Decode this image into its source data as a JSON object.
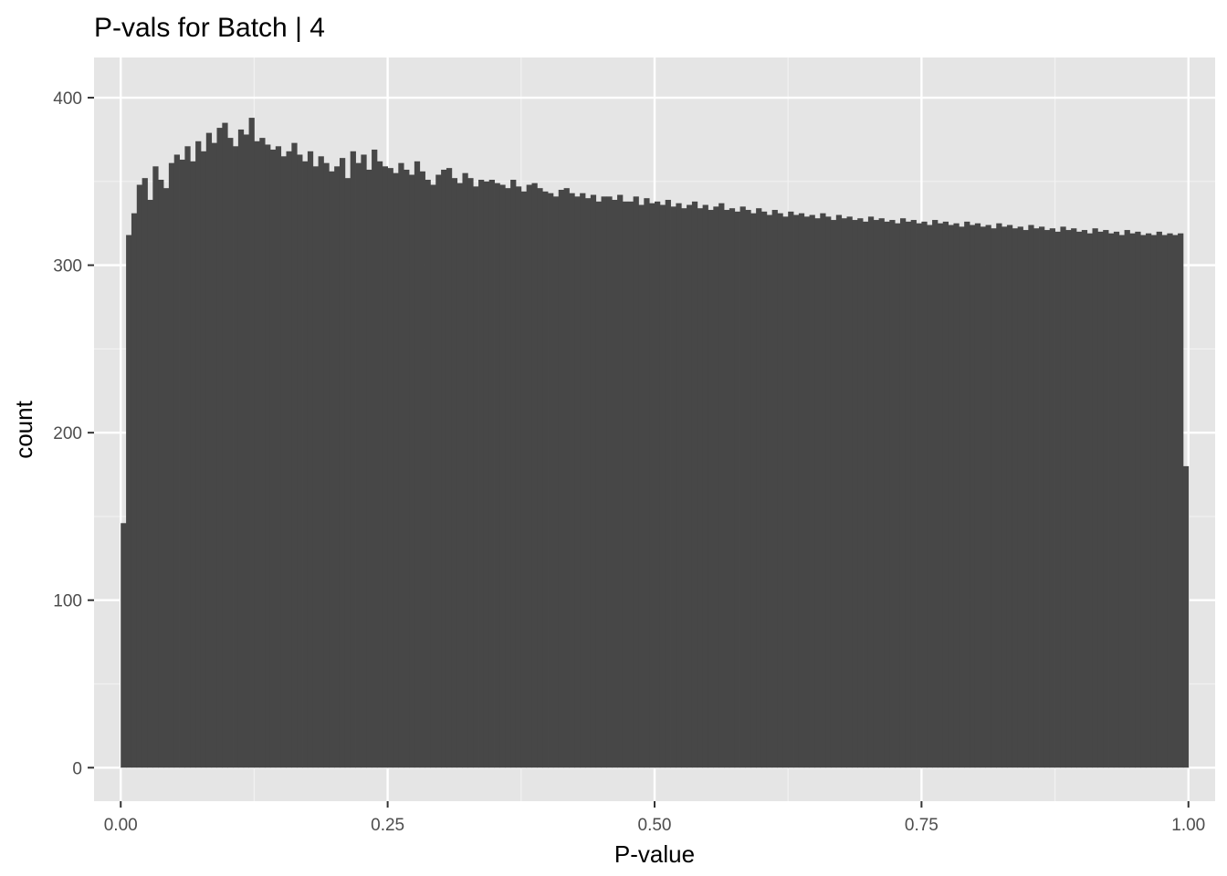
{
  "chart_data": {
    "type": "bar",
    "title": "P-vals for Batch | 4",
    "xlabel": "P-value",
    "ylabel": "count",
    "xlim": [
      -0.025,
      1.025
    ],
    "ylim": [
      -20,
      424
    ],
    "x_ticks": [
      0,
      0.25,
      0.5,
      0.75,
      1
    ],
    "x_tick_labels": [
      "0.00",
      "0.25",
      "0.50",
      "0.75",
      "1.00"
    ],
    "y_ticks": [
      0,
      100,
      200,
      300,
      400
    ],
    "y_tick_labels": [
      "0",
      "100",
      "200",
      "300",
      "400"
    ],
    "x_minor_ticks": [
      0.125,
      0.375,
      0.625,
      0.875
    ],
    "y_minor_ticks": [
      50,
      150,
      250,
      350
    ],
    "grid": true,
    "legend": "none",
    "bar_color": "#474747",
    "panel_color": "#e5e5e5",
    "bin_range": [
      0,
      1
    ],
    "bin_count": 200,
    "values": [
      146,
      318,
      331,
      348,
      352,
      339,
      359,
      351,
      346,
      361,
      366,
      363,
      371,
      362,
      374,
      368,
      379,
      373,
      382,
      385,
      376,
      371,
      381,
      378,
      388,
      374,
      376,
      372,
      369,
      371,
      365,
      368,
      373,
      366,
      362,
      368,
      359,
      365,
      361,
      356,
      359,
      364,
      352,
      368,
      361,
      366,
      357,
      369,
      362,
      359,
      358,
      355,
      361,
      357,
      354,
      362,
      356,
      351,
      348,
      354,
      357,
      358,
      352,
      349,
      355,
      352,
      347,
      351,
      350,
      351,
      349,
      348,
      346,
      351,
      347,
      344,
      348,
      349,
      346,
      344,
      343,
      341,
      345,
      346,
      343,
      341,
      343,
      340,
      342,
      338,
      341,
      341,
      339,
      342,
      338,
      338,
      341,
      336,
      340,
      337,
      338,
      336,
      339,
      335,
      337,
      334,
      336,
      338,
      334,
      336,
      333,
      335,
      337,
      333,
      334,
      332,
      335,
      333,
      331,
      334,
      332,
      330,
      333,
      331,
      329,
      332,
      330,
      331,
      329,
      330,
      328,
      331,
      329,
      327,
      330,
      328,
      329,
      327,
      328,
      326,
      329,
      327,
      328,
      326,
      327,
      325,
      328,
      326,
      327,
      325,
      326,
      324,
      327,
      325,
      326,
      324,
      325,
      323,
      326,
      324,
      325,
      323,
      324,
      322,
      325,
      323,
      324,
      322,
      323,
      321,
      324,
      322,
      323,
      321,
      322,
      320,
      323,
      321,
      322,
      320,
      321,
      319,
      322,
      320,
      321,
      319,
      320,
      318,
      321,
      319,
      320,
      318,
      319,
      318,
      320,
      318,
      319,
      318,
      319,
      180
    ]
  }
}
